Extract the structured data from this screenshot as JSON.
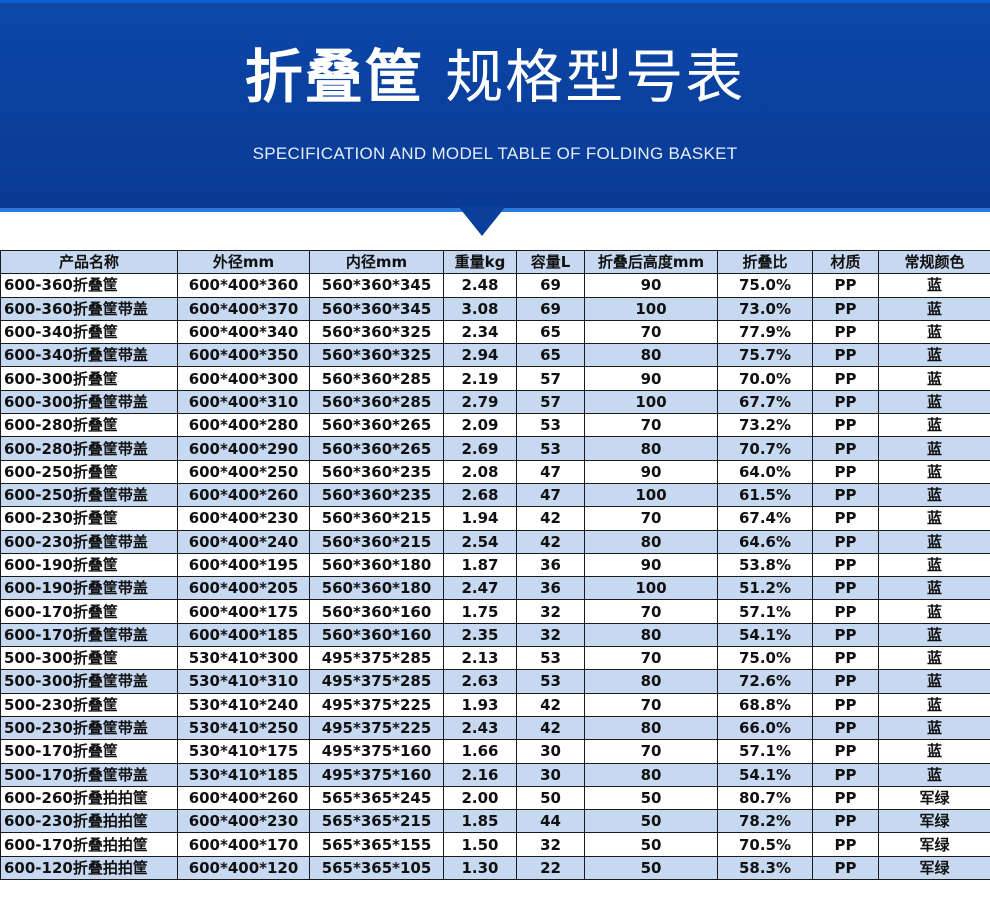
{
  "header": {
    "title_bold": "折叠筐",
    "title_light": "规格型号表",
    "subtitle": "SPECIFICATION AND MODEL TABLE OF FOLDING BASKET"
  },
  "colors": {
    "banner": "#0a3f9c",
    "row_highlight": "#c7d9f1"
  },
  "table": {
    "columns": [
      "产品名称",
      "外径mm",
      "内径mm",
      "重量kg",
      "容量L",
      "折叠后高度mm",
      "折叠比",
      "材质",
      "常规颜色"
    ],
    "rows": [
      [
        "600-360折叠筐",
        "600*400*360",
        "560*360*345",
        "2.48",
        "69",
        "90",
        "75.0%",
        "PP",
        "蓝"
      ],
      [
        "600-360折叠筐带盖",
        "600*400*370",
        "560*360*345",
        "3.08",
        "69",
        "100",
        "73.0%",
        "PP",
        "蓝"
      ],
      [
        "600-340折叠筐",
        "600*400*340",
        "560*360*325",
        "2.34",
        "65",
        "70",
        "77.9%",
        "PP",
        "蓝"
      ],
      [
        "600-340折叠筐带盖",
        "600*400*350",
        "560*360*325",
        "2.94",
        "65",
        "80",
        "75.7%",
        "PP",
        "蓝"
      ],
      [
        "600-300折叠筐",
        "600*400*300",
        "560*360*285",
        "2.19",
        "57",
        "90",
        "70.0%",
        "PP",
        "蓝"
      ],
      [
        "600-300折叠筐带盖",
        "600*400*310",
        "560*360*285",
        "2.79",
        "57",
        "100",
        "67.7%",
        "PP",
        "蓝"
      ],
      [
        "600-280折叠筐",
        "600*400*280",
        "560*360*265",
        "2.09",
        "53",
        "70",
        "73.2%",
        "PP",
        "蓝"
      ],
      [
        "600-280折叠筐带盖",
        "600*400*290",
        "560*360*265",
        "2.69",
        "53",
        "80",
        "70.7%",
        "PP",
        "蓝"
      ],
      [
        "600-250折叠筐",
        "600*400*250",
        "560*360*235",
        "2.08",
        "47",
        "90",
        "64.0%",
        "PP",
        "蓝"
      ],
      [
        "600-250折叠筐带盖",
        "600*400*260",
        "560*360*235",
        "2.68",
        "47",
        "100",
        "61.5%",
        "PP",
        "蓝"
      ],
      [
        "600-230折叠筐",
        "600*400*230",
        "560*360*215",
        "1.94",
        "42",
        "70",
        "67.4%",
        "PP",
        "蓝"
      ],
      [
        "600-230折叠筐带盖",
        "600*400*240",
        "560*360*215",
        "2.54",
        "42",
        "80",
        "64.6%",
        "PP",
        "蓝"
      ],
      [
        "600-190折叠筐",
        "600*400*195",
        "560*360*180",
        "1.87",
        "36",
        "90",
        "53.8%",
        "PP",
        "蓝"
      ],
      [
        "600-190折叠筐带盖",
        "600*400*205",
        "560*360*180",
        "2.47",
        "36",
        "100",
        "51.2%",
        "PP",
        "蓝"
      ],
      [
        "600-170折叠筐",
        "600*400*175",
        "560*360*160",
        "1.75",
        "32",
        "70",
        "57.1%",
        "PP",
        "蓝"
      ],
      [
        "600-170折叠筐带盖",
        "600*400*185",
        "560*360*160",
        "2.35",
        "32",
        "80",
        "54.1%",
        "PP",
        "蓝"
      ],
      [
        "500-300折叠筐",
        "530*410*300",
        "495*375*285",
        "2.13",
        "53",
        "70",
        "75.0%",
        "PP",
        "蓝"
      ],
      [
        "500-300折叠筐带盖",
        "530*410*310",
        "495*375*285",
        "2.63",
        "53",
        "80",
        "72.6%",
        "PP",
        "蓝"
      ],
      [
        "500-230折叠筐",
        "530*410*240",
        "495*375*225",
        "1.93",
        "42",
        "70",
        "68.8%",
        "PP",
        "蓝"
      ],
      [
        "500-230折叠筐带盖",
        "530*410*250",
        "495*375*225",
        "2.43",
        "42",
        "80",
        "66.0%",
        "PP",
        "蓝"
      ],
      [
        "500-170折叠筐",
        "530*410*175",
        "495*375*160",
        "1.66",
        "30",
        "70",
        "57.1%",
        "PP",
        "蓝"
      ],
      [
        "500-170折叠筐带盖",
        "530*410*185",
        "495*375*160",
        "2.16",
        "30",
        "80",
        "54.1%",
        "PP",
        "蓝"
      ],
      [
        "600-260折叠拍拍筐",
        "600*400*260",
        "565*365*245",
        "2.00",
        "50",
        "50",
        "80.7%",
        "PP",
        "军绿"
      ],
      [
        "600-230折叠拍拍筐",
        "600*400*230",
        "565*365*215",
        "1.85",
        "44",
        "50",
        "78.2%",
        "PP",
        "军绿"
      ],
      [
        "600-170折叠拍拍筐",
        "600*400*170",
        "565*365*155",
        "1.50",
        "32",
        "50",
        "70.5%",
        "PP",
        "军绿"
      ],
      [
        "600-120折叠拍拍筐",
        "600*400*120",
        "565*365*105",
        "1.30",
        "22",
        "50",
        "58.3%",
        "PP",
        "军绿"
      ]
    ]
  }
}
